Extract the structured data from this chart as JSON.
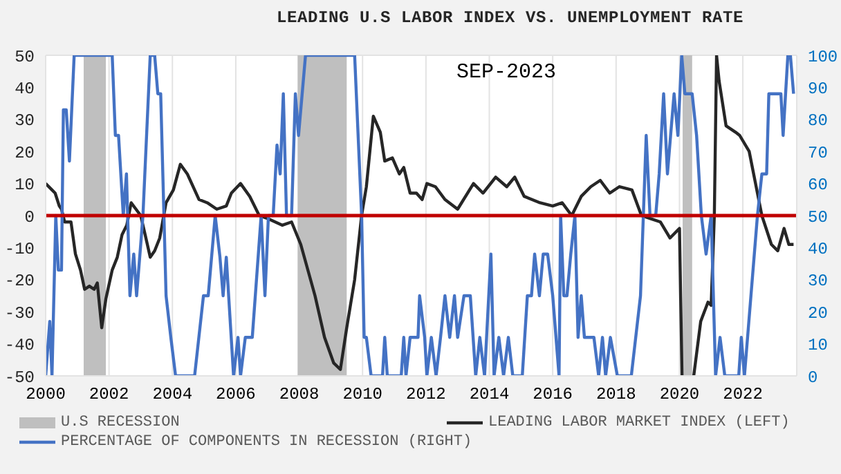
{
  "chart_data": {
    "type": "line",
    "title": "LEADING U.S LABOR INDEX VS. UNEMPLOYMENT RATE",
    "annotations": [
      "SEP-2023"
    ],
    "xlim": [
      2000,
      2023.7
    ],
    "xticks": [
      2000,
      2002,
      2004,
      2006,
      2008,
      2010,
      2012,
      2014,
      2016,
      2018,
      2020,
      2022
    ],
    "ylim": [
      -50,
      50
    ],
    "yticks": [
      -50,
      -40,
      -30,
      -20,
      -10,
      0,
      10,
      20,
      30,
      40,
      50
    ],
    "y2lim": [
      0,
      100
    ],
    "y2ticks": [
      0,
      10,
      20,
      30,
      40,
      50,
      60,
      70,
      80,
      90,
      100
    ],
    "grid": true,
    "legend": "bottom",
    "ref_lines": [
      {
        "axis": "y",
        "value": 0,
        "color": "#c00000"
      }
    ],
    "bands": [
      {
        "axis": "x",
        "from": 2001.2,
        "to": 2001.9,
        "label": "U.S RECESSION",
        "color": "#bfbfbf"
      },
      {
        "axis": "x",
        "from": 2007.95,
        "to": 2009.5,
        "color": "#bfbfbf"
      },
      {
        "axis": "x",
        "from": 2020.1,
        "to": 2020.4,
        "color": "#bfbfbf"
      }
    ],
    "series": [
      {
        "name": "LEADING LABOR MARKET INDEX (LEFT)",
        "color": "#262626",
        "x": [
          2000.0,
          2000.2,
          2000.3,
          2000.43,
          2000.5,
          2000.6,
          2000.8,
          2000.94,
          2001.1,
          2001.23,
          2001.38,
          2001.53,
          2001.63,
          2001.77,
          2001.9,
          2002.1,
          2002.26,
          2002.41,
          2002.56,
          2002.7,
          2002.85,
          2003.0,
          2003.14,
          2003.3,
          2003.44,
          2003.6,
          2003.8,
          2004.03,
          2004.25,
          2004.47,
          2004.84,
          2005.1,
          2005.4,
          2005.7,
          2005.86,
          2006.15,
          2006.44,
          2006.74,
          2007.03,
          2007.47,
          2007.76,
          2008.05,
          2008.5,
          2008.8,
          2009.09,
          2009.3,
          2009.5,
          2009.75,
          2009.97,
          2010.12,
          2010.34,
          2010.56,
          2010.7,
          2010.94,
          2011.16,
          2011.3,
          2011.5,
          2011.7,
          2011.88,
          2012.03,
          2012.3,
          2012.6,
          2013.0,
          2013.5,
          2013.8,
          2014.2,
          2014.55,
          2014.8,
          2015.1,
          2015.6,
          2016.0,
          2016.3,
          2016.6,
          2016.9,
          2017.2,
          2017.5,
          2017.8,
          2018.1,
          2018.5,
          2018.8,
          2019.1,
          2019.4,
          2019.7,
          2020.0,
          2020.08,
          2020.3,
          2020.45,
          2020.67,
          2020.9,
          2021.0,
          2021.1,
          2021.17,
          2021.25,
          2021.47,
          2021.77,
          2021.9,
          2022.2,
          2022.4,
          2022.6,
          2022.9,
          2023.1,
          2023.3,
          2023.45,
          2023.6
        ],
        "values": [
          10,
          8,
          7,
          3,
          2,
          -2,
          -2,
          -12,
          -17,
          -23,
          -22,
          -23,
          -21,
          -35,
          -26,
          -17,
          -13,
          -6,
          -3,
          4,
          2,
          0,
          -6,
          -13,
          -11,
          -7,
          4,
          8,
          16,
          13,
          5,
          4,
          2,
          3,
          7,
          10,
          6,
          0,
          -1,
          -3,
          -2,
          -9,
          -25,
          -38,
          -46,
          -48,
          -35,
          -20,
          0,
          9,
          31,
          26,
          17,
          18,
          13,
          15,
          7,
          7,
          5,
          10,
          9,
          5,
          2,
          10,
          7,
          12,
          9,
          12,
          6,
          4,
          3,
          4,
          0,
          6,
          9,
          11,
          7,
          9,
          8,
          0,
          -1,
          -2,
          -7,
          -4,
          -50,
          null,
          -50,
          -33,
          -27,
          -28,
          0,
          50,
          42,
          28,
          26,
          25,
          20,
          10,
          0,
          -9,
          -11,
          -4,
          -9,
          -9
        ]
      },
      {
        "name": "PERCENTAGE OF COMPONENTS IN RECESSION (RIGHT)",
        "color": "#4472c4",
        "axis": "y2",
        "x": [
          2000.0,
          2000.13,
          2000.2,
          2000.32,
          2000.4,
          2000.5,
          2000.56,
          2000.65,
          2000.75,
          2000.9,
          2002.1,
          2002.2,
          2002.3,
          2002.45,
          2002.55,
          2002.66,
          2002.78,
          2002.87,
          2003.0,
          2003.07,
          2003.3,
          2003.44,
          2003.54,
          2003.63,
          2003.8,
          2003.95,
          2004.1,
          2004.7,
          2004.98,
          2005.13,
          2005.35,
          2005.5,
          2005.6,
          2005.7,
          2005.93,
          2006.07,
          2006.15,
          2006.3,
          2006.52,
          2006.8,
          2006.92,
          2007.03,
          2007.18,
          2007.3,
          2007.4,
          2007.5,
          2007.6,
          2007.76,
          2007.88,
          2007.98,
          2008.2,
          2009.75,
          2009.97,
          2010.05,
          2010.12,
          2010.27,
          2010.63,
          2010.7,
          2010.78,
          2011.22,
          2011.3,
          2011.37,
          2011.5,
          2011.75,
          2011.8,
          2011.96,
          2012.03,
          2012.17,
          2012.32,
          2012.46,
          2012.6,
          2012.75,
          2012.9,
          2013.0,
          2013.2,
          2013.4,
          2013.57,
          2013.7,
          2013.85,
          2014.05,
          2014.15,
          2014.3,
          2014.45,
          2014.6,
          2014.74,
          2015.04,
          2015.2,
          2015.33,
          2015.43,
          2015.58,
          2015.7,
          2015.84,
          2016.0,
          2016.2,
          2016.25,
          2016.35,
          2016.45,
          2016.57,
          2016.7,
          2016.8,
          2016.9,
          2017.0,
          2017.3,
          2017.45,
          2017.57,
          2017.67,
          2017.82,
          2018.04,
          2018.48,
          2018.77,
          2018.95,
          2019.07,
          2019.25,
          2019.36,
          2019.5,
          2019.62,
          2019.72,
          2019.83,
          2019.95,
          2020.07,
          2020.17,
          2020.4,
          2020.54,
          2020.69,
          2020.84,
          2021.0,
          2021.14,
          2021.28,
          2021.43,
          2021.87,
          2021.95,
          2022.05,
          2022.46,
          2022.6,
          2022.75,
          2022.82,
          2023.2,
          2023.27,
          2023.42,
          2023.5,
          2023.6
        ],
        "values": [
          0,
          17,
          0,
          50,
          33,
          33,
          83,
          83,
          67,
          100,
          100,
          75,
          75,
          50,
          63,
          25,
          38,
          25,
          41,
          50,
          100,
          100,
          88,
          88,
          25,
          12,
          0,
          0,
          25,
          25,
          50,
          37,
          25,
          37,
          0,
          12,
          0,
          12,
          12,
          50,
          25,
          50,
          50,
          72,
          63,
          88,
          50,
          50,
          88,
          75,
          100,
          100,
          50,
          12,
          12,
          0,
          0,
          12,
          0,
          0,
          12,
          0,
          12,
          12,
          25,
          12,
          0,
          12,
          0,
          12,
          25,
          12,
          25,
          12,
          25,
          25,
          0,
          12,
          0,
          38,
          0,
          12,
          0,
          12,
          0,
          0,
          25,
          25,
          38,
          25,
          38,
          38,
          25,
          0,
          50,
          25,
          25,
          38,
          50,
          12,
          25,
          12,
          12,
          0,
          12,
          0,
          12,
          0,
          0,
          25,
          75,
          50,
          50,
          63,
          88,
          63,
          75,
          88,
          75,
          100,
          88,
          88,
          75,
          50,
          38,
          50,
          0,
          12,
          0,
          0,
          12,
          0,
          50,
          63,
          63,
          88,
          88,
          75,
          100,
          100,
          88
        ]
      }
    ]
  }
}
